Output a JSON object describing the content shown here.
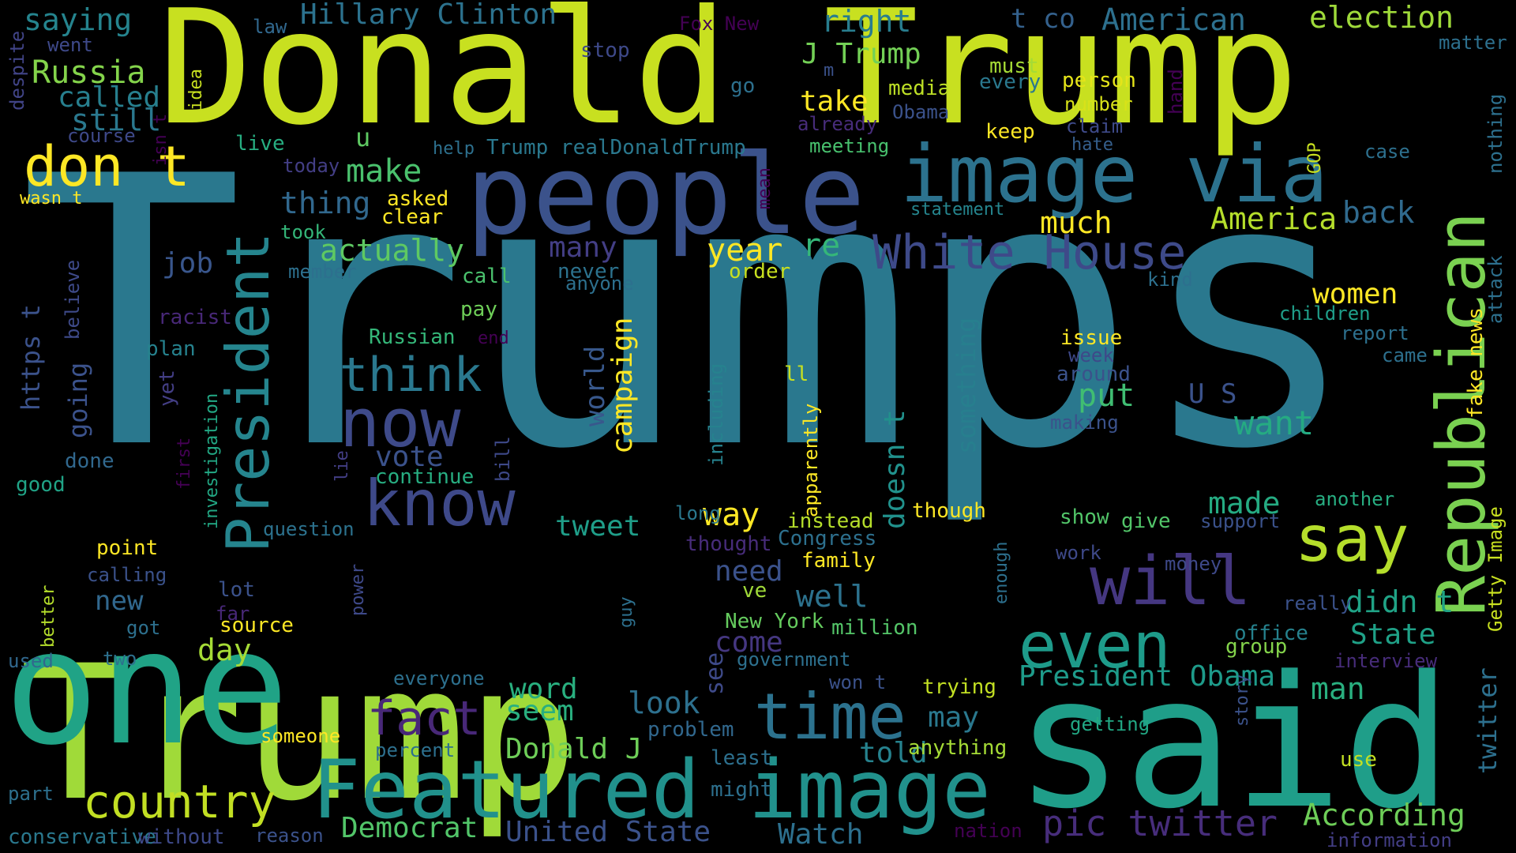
{
  "background": "#000000",
  "palette": [
    "#fde725",
    "#b5de2b",
    "#6ece58",
    "#35b779",
    "#1f9e89",
    "#26828e",
    "#31688e",
    "#3e4989",
    "#482878",
    "#440154"
  ],
  "words": [
    {
      "text": "Trumps",
      "color": "#2a788e"
    },
    {
      "text": "Trump",
      "color": "#a0da39"
    },
    {
      "text": "Donald Trump",
      "color": "#c8e020"
    },
    {
      "text": "said",
      "color": "#1f9e89"
    },
    {
      "text": "one",
      "color": "#20a386"
    },
    {
      "text": "people",
      "color": "#3b528b"
    },
    {
      "text": "image via",
      "color": "#2c728e"
    },
    {
      "text": "Featured image",
      "color": "#21918c"
    },
    {
      "text": "Republican",
      "color": "#7ad151"
    },
    {
      "text": "President",
      "color": "#25858e"
    },
    {
      "text": "now",
      "color": "#3e4a89"
    },
    {
      "text": "know",
      "color": "#3e4989"
    },
    {
      "text": "time",
      "color": "#2c728e"
    },
    {
      "text": "even",
      "color": "#1e9b8a"
    },
    {
      "text": "will",
      "color": "#453781"
    },
    {
      "text": "say",
      "color": "#b5de2b"
    },
    {
      "text": "White House",
      "color": "#3e4a89"
    },
    {
      "text": "think",
      "color": "#2a788e"
    },
    {
      "text": "don t",
      "color": "#fde725"
    },
    {
      "text": "fact",
      "color": "#482878"
    },
    {
      "text": "country",
      "color": "#c2df23"
    },
    {
      "text": "pic twitter",
      "color": "#472d7b"
    },
    {
      "text": "United State",
      "color": "#3b528b"
    },
    {
      "text": "Watch",
      "color": "#2d708e"
    },
    {
      "text": "According",
      "color": "#6ece58"
    },
    {
      "text": "Democrat",
      "color": "#52c569"
    },
    {
      "text": "Hillary Clinton",
      "color": "#2c728e"
    },
    {
      "text": "American",
      "color": "#2d708e"
    },
    {
      "text": "election",
      "color": "#9fda3a"
    },
    {
      "text": "saying",
      "color": "#25848e"
    },
    {
      "text": "Russia",
      "color": "#84d44b"
    },
    {
      "text": "called",
      "color": "#277f8e"
    },
    {
      "text": "still",
      "color": "#2a788e"
    },
    {
      "text": "J Trump",
      "color": "#73d056"
    },
    {
      "text": "t co",
      "color": "#34618d"
    },
    {
      "text": "right",
      "color": "#287d8e"
    },
    {
      "text": "Fox New",
      "color": "#440154"
    },
    {
      "text": "make",
      "color": "#4ac16d"
    },
    {
      "text": "thing",
      "color": "#31688e"
    },
    {
      "text": "take",
      "color": "#fde725"
    },
    {
      "text": "media",
      "color": "#bddf26"
    },
    {
      "text": "Obama",
      "color": "#3b528b"
    },
    {
      "text": "must",
      "color": "#a5db36"
    },
    {
      "text": "every",
      "color": "#2a788e"
    },
    {
      "text": "person",
      "color": "#e5e419"
    },
    {
      "text": "number",
      "color": "#d8e219"
    },
    {
      "text": "claim",
      "color": "#3e4a89"
    },
    {
      "text": "hate",
      "color": "#355f8d"
    },
    {
      "text": "keep",
      "color": "#fde725"
    },
    {
      "text": "already",
      "color": "#472c7a"
    },
    {
      "text": "meeting",
      "color": "#48c16e"
    },
    {
      "text": "help",
      "color": "#2d708e"
    },
    {
      "text": "Trump realDonaldTrump",
      "color": "#2a788e"
    },
    {
      "text": "statement",
      "color": "#25858e"
    },
    {
      "text": "America",
      "color": "#b5de2b"
    },
    {
      "text": "back",
      "color": "#306a8e"
    },
    {
      "text": "much",
      "color": "#fde725"
    },
    {
      "text": "actually",
      "color": "#5ec962"
    },
    {
      "text": "job",
      "color": "#39568c"
    },
    {
      "text": "year",
      "color": "#fde725"
    },
    {
      "text": "re",
      "color": "#35b779"
    },
    {
      "text": "many",
      "color": "#433e85"
    },
    {
      "text": "women",
      "color": "#fde725"
    },
    {
      "text": "campaign",
      "color": "#fde725"
    },
    {
      "text": "world",
      "color": "#38588c"
    },
    {
      "text": "something",
      "color": "#277f8e"
    },
    {
      "text": "doesn t",
      "color": "#21918c"
    },
    {
      "text": "U S",
      "color": "#3b528b"
    },
    {
      "text": "want",
      "color": "#25ab82"
    },
    {
      "text": "put",
      "color": "#40bd72"
    },
    {
      "text": "way",
      "color": "#fde725"
    },
    {
      "text": "made",
      "color": "#25ab82"
    },
    {
      "text": "tweet",
      "color": "#1f9e89"
    },
    {
      "text": "need",
      "color": "#3b528b"
    },
    {
      "text": "well",
      "color": "#2c728e"
    },
    {
      "text": "didn t",
      "color": "#20a386"
    },
    {
      "text": "State",
      "color": "#1fa187"
    },
    {
      "text": "President Obama",
      "color": "#1e9b8a"
    },
    {
      "text": "man",
      "color": "#29af7f"
    },
    {
      "text": "come",
      "color": "#453781"
    },
    {
      "text": "day",
      "color": "#a5db36"
    },
    {
      "text": "look",
      "color": "#2d708e"
    },
    {
      "text": "seem",
      "color": "#29af7f"
    },
    {
      "text": "word",
      "color": "#29af7f"
    },
    {
      "text": "may",
      "color": "#2a788e"
    },
    {
      "text": "told",
      "color": "#26828e"
    },
    {
      "text": "Donald J",
      "color": "#6ece58"
    },
    {
      "text": "go",
      "color": "#2d708e"
    },
    {
      "text": "u",
      "color": "#5ec962"
    },
    {
      "text": "m",
      "color": "#3b528b"
    },
    {
      "text": "law",
      "color": "#31688e"
    },
    {
      "text": "stop",
      "color": "#3e4989"
    },
    {
      "text": "went",
      "color": "#3e4989"
    },
    {
      "text": "course",
      "color": "#3e4989"
    },
    {
      "text": "despite",
      "color": "#414487"
    },
    {
      "text": "idea",
      "color": "#c8e020"
    },
    {
      "text": "live",
      "color": "#27ad81"
    },
    {
      "text": "today",
      "color": "#433e85"
    },
    {
      "text": "isn t",
      "color": "#440154"
    },
    {
      "text": "wasn t",
      "color": "#fde725"
    },
    {
      "text": "asked",
      "color": "#fde725"
    },
    {
      "text": "clear",
      "color": "#fde725"
    },
    {
      "text": "took",
      "color": "#34b679"
    },
    {
      "text": "member",
      "color": "#2d708e"
    },
    {
      "text": "call",
      "color": "#4ac16d"
    },
    {
      "text": "never",
      "color": "#2c728e"
    },
    {
      "text": "order",
      "color": "#c8e020"
    },
    {
      "text": "anyone",
      "color": "#2d708e"
    },
    {
      "text": "pay",
      "color": "#6ece58"
    },
    {
      "text": "racist",
      "color": "#482878"
    },
    {
      "text": "believe",
      "color": "#3e4a89"
    },
    {
      "text": "plan",
      "color": "#26828e"
    },
    {
      "text": "Russian",
      "color": "#35b779"
    },
    {
      "text": "end",
      "color": "#440154"
    },
    {
      "text": "https t",
      "color": "#3b528b"
    },
    {
      "text": "going",
      "color": "#3b528b"
    },
    {
      "text": "yet",
      "color": "#433e85"
    },
    {
      "text": "first",
      "color": "#440154"
    },
    {
      "text": "investigation",
      "color": "#22a884"
    },
    {
      "text": "vote",
      "color": "#3b528b"
    },
    {
      "text": "continue",
      "color": "#27ad81"
    },
    {
      "text": "bill",
      "color": "#3e4989"
    },
    {
      "text": "lie",
      "color": "#433e85"
    },
    {
      "text": "done",
      "color": "#31688e"
    },
    {
      "text": "good",
      "color": "#20a386"
    },
    {
      "text": "question",
      "color": "#2c728e"
    },
    {
      "text": "point",
      "color": "#fde725"
    },
    {
      "text": "calling",
      "color": "#3b528b"
    },
    {
      "text": "new",
      "color": "#31688e"
    },
    {
      "text": "better",
      "color": "#b5de2b"
    },
    {
      "text": "lot",
      "color": "#3b528b"
    },
    {
      "text": "far",
      "color": "#482878"
    },
    {
      "text": "power",
      "color": "#3e4989"
    },
    {
      "text": "source",
      "color": "#fde725"
    },
    {
      "text": "got",
      "color": "#2d708e"
    },
    {
      "text": "two",
      "color": "#2d708e"
    },
    {
      "text": "used",
      "color": "#31688e"
    },
    {
      "text": "guy",
      "color": "#2d708e"
    },
    {
      "text": "ve",
      "color": "#a0da39"
    },
    {
      "text": "New York",
      "color": "#65cb5e"
    },
    {
      "text": "million",
      "color": "#54c568"
    },
    {
      "text": "government",
      "color": "#2d708e"
    },
    {
      "text": "see",
      "color": "#3e4a89"
    },
    {
      "text": "everyone",
      "color": "#2d708e"
    },
    {
      "text": "won t",
      "color": "#3b528b"
    },
    {
      "text": "trying",
      "color": "#c2df23"
    },
    {
      "text": "thought",
      "color": "#472c7a"
    },
    {
      "text": "Congress",
      "color": "#2d708e"
    },
    {
      "text": "family",
      "color": "#fde725"
    },
    {
      "text": "instead",
      "color": "#b5de2b"
    },
    {
      "text": "apparently",
      "color": "#fde725"
    },
    {
      "text": "including",
      "color": "#26828e"
    },
    {
      "text": "ll",
      "color": "#c8e020"
    },
    {
      "text": "long",
      "color": "#2a788e"
    },
    {
      "text": "mean",
      "color": "#440154"
    },
    {
      "text": "though",
      "color": "#fde725"
    },
    {
      "text": "enough",
      "color": "#2d708e"
    },
    {
      "text": "show",
      "color": "#52c569"
    },
    {
      "text": "give",
      "color": "#52c569"
    },
    {
      "text": "support",
      "color": "#3b528b"
    },
    {
      "text": "another",
      "color": "#27ad81"
    },
    {
      "text": "work",
      "color": "#3e4989"
    },
    {
      "text": "money",
      "color": "#3e4989"
    },
    {
      "text": "really",
      "color": "#3b528b"
    },
    {
      "text": "office",
      "color": "#26828e"
    },
    {
      "text": "group",
      "color": "#84d44b"
    },
    {
      "text": "interview",
      "color": "#472c7a"
    },
    {
      "text": "getting",
      "color": "#22a884"
    },
    {
      "text": "story",
      "color": "#3b528b"
    },
    {
      "text": "use",
      "color": "#c2df23"
    },
    {
      "text": "anything",
      "color": "#a5db36"
    },
    {
      "text": "least",
      "color": "#2d708e"
    },
    {
      "text": "might",
      "color": "#2d708e"
    },
    {
      "text": "problem",
      "color": "#31688e"
    },
    {
      "text": "someone",
      "color": "#fde725"
    },
    {
      "text": "percent",
      "color": "#2d708e"
    },
    {
      "text": "reason",
      "color": "#3b528b"
    },
    {
      "text": "part",
      "color": "#2d708e"
    },
    {
      "text": "conservative",
      "color": "#2a788e"
    },
    {
      "text": "without",
      "color": "#3e4989"
    },
    {
      "text": "nation",
      "color": "#440154"
    },
    {
      "text": "information",
      "color": "#433e85"
    },
    {
      "text": "Getty Image",
      "color": "#c8e020"
    },
    {
      "text": "twitter",
      "color": "#2d708e"
    },
    {
      "text": "fake news",
      "color": "#fde725"
    },
    {
      "text": "attack",
      "color": "#2d708e"
    },
    {
      "text": "report",
      "color": "#2d708e"
    },
    {
      "text": "came",
      "color": "#2d708e"
    },
    {
      "text": "children",
      "color": "#1f9e89"
    },
    {
      "text": "kind",
      "color": "#2d708e"
    },
    {
      "text": "issue",
      "color": "#fde725"
    },
    {
      "text": "week",
      "color": "#3e4989"
    },
    {
      "text": "around",
      "color": "#3b528b"
    },
    {
      "text": "making",
      "color": "#3b528b"
    },
    {
      "text": "case",
      "color": "#2d708e"
    },
    {
      "text": "nothing",
      "color": "#2d708e"
    },
    {
      "text": "GOP",
      "color": "#c8e020"
    },
    {
      "text": "hand",
      "color": "#440154"
    },
    {
      "text": "matter",
      "color": "#2d708e"
    }
  ]
}
